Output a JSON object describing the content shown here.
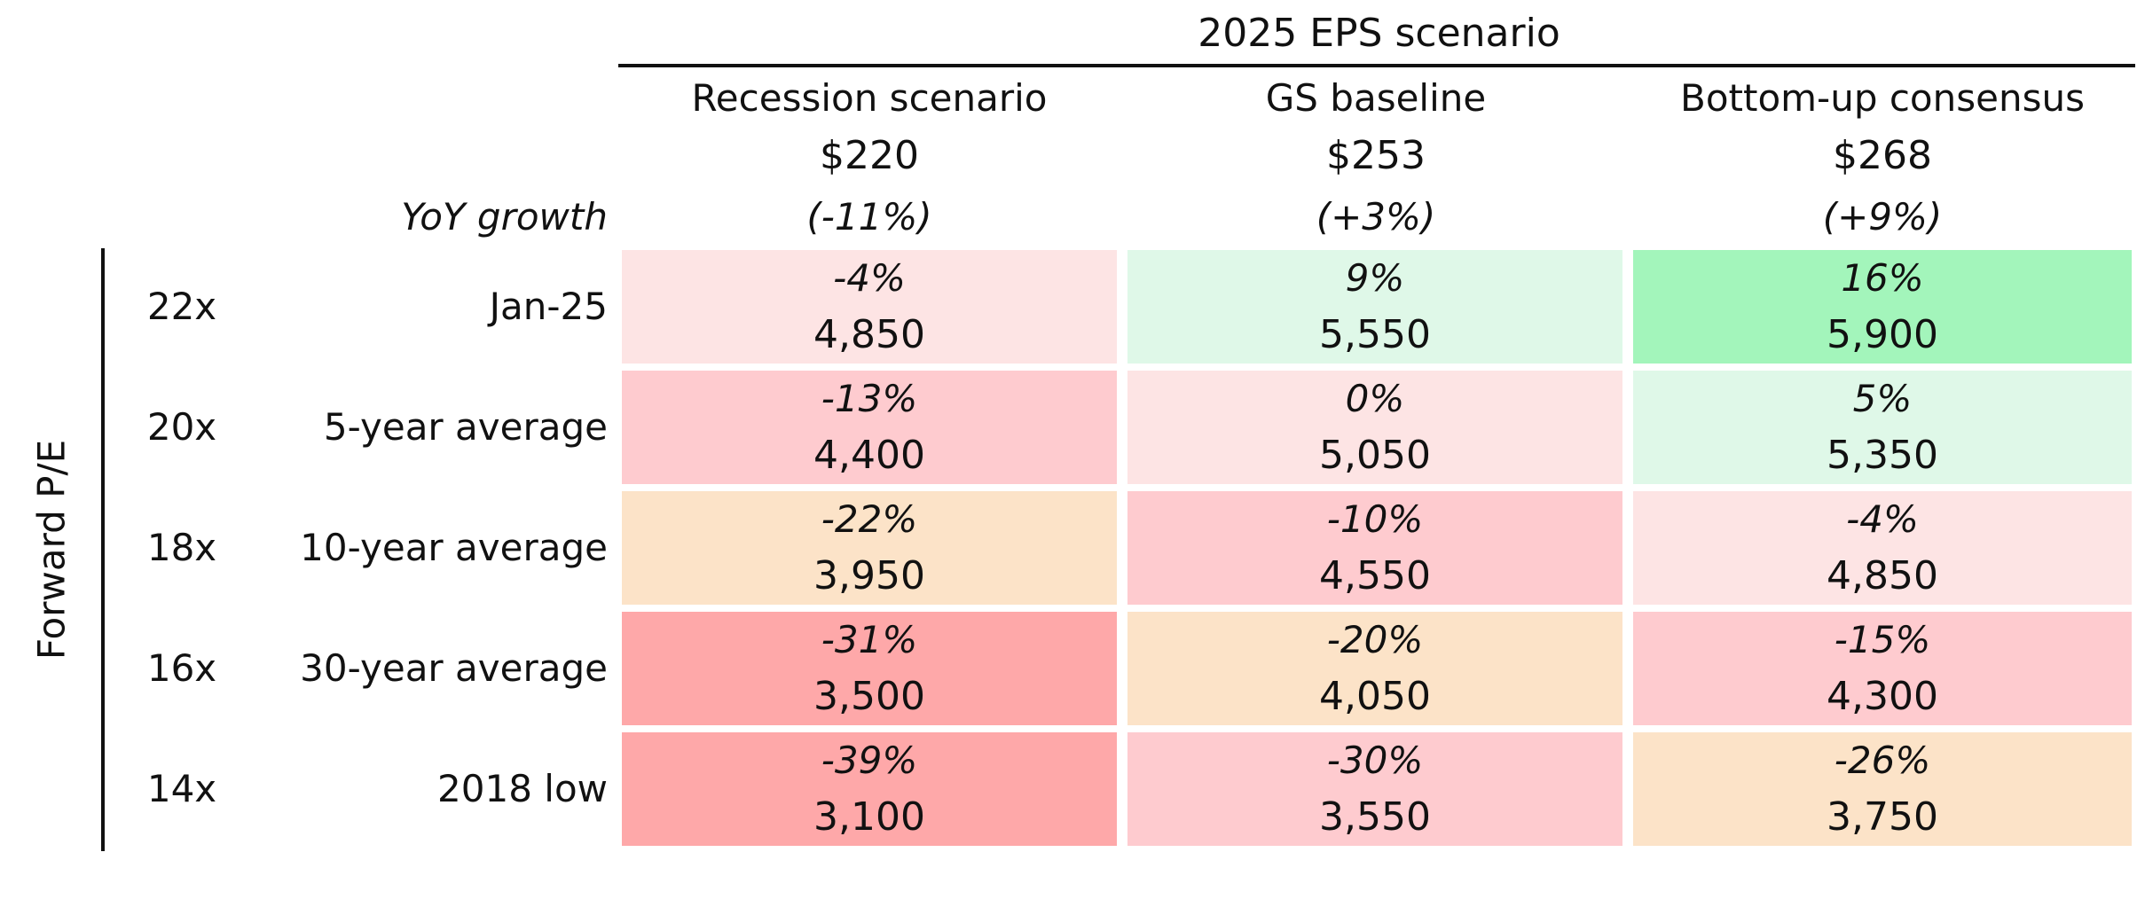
{
  "chart_data": {
    "type": "table",
    "title": "2025 EPS scenario",
    "row_axis_label": "Forward P/E",
    "growth_label": "YoY growth",
    "columns": [
      {
        "name": "Recession scenario",
        "eps": "$220",
        "growth": "(-11%)"
      },
      {
        "name": "GS baseline",
        "eps": "$253",
        "growth": "(+3%)"
      },
      {
        "name": "Bottom-up consensus",
        "eps": "$268",
        "growth": "(+9%)"
      }
    ],
    "rows": [
      {
        "pe": "22x",
        "label": "Jan-25",
        "cells": [
          {
            "pct": "-4%",
            "level": "4,850",
            "color": "#fde4e4"
          },
          {
            "pct": "9%",
            "level": "5,550",
            "color": "#dff8e8"
          },
          {
            "pct": "16%",
            "level": "5,900",
            "color": "#a3f5bb"
          }
        ]
      },
      {
        "pe": "20x",
        "label": "5-year average",
        "cells": [
          {
            "pct": "-13%",
            "level": "4,400",
            "color": "#fecbcf"
          },
          {
            "pct": "0%",
            "level": "5,050",
            "color": "#fde4e4"
          },
          {
            "pct": "5%",
            "level": "5,350",
            "color": "#dff8e8"
          }
        ]
      },
      {
        "pe": "18x",
        "label": "10-year average",
        "cells": [
          {
            "pct": "-22%",
            "level": "3,950",
            "color": "#fce3c8"
          },
          {
            "pct": "-10%",
            "level": "4,550",
            "color": "#fecbcf"
          },
          {
            "pct": "-4%",
            "level": "4,850",
            "color": "#fde4e4"
          }
        ]
      },
      {
        "pe": "16x",
        "label": "30-year average",
        "cells": [
          {
            "pct": "-31%",
            "level": "3,500",
            "color": "#fea8a9"
          },
          {
            "pct": "-20%",
            "level": "4,050",
            "color": "#fce3c8"
          },
          {
            "pct": "-15%",
            "level": "4,300",
            "color": "#fecbcf"
          }
        ]
      },
      {
        "pe": "14x",
        "label": "2018 low",
        "cells": [
          {
            "pct": "-39%",
            "level": "3,100",
            "color": "#fea8a9"
          },
          {
            "pct": "-30%",
            "level": "3,550",
            "color": "#fecbcf"
          },
          {
            "pct": "-26%",
            "level": "3,750",
            "color": "#fce3c8"
          }
        ]
      }
    ]
  }
}
